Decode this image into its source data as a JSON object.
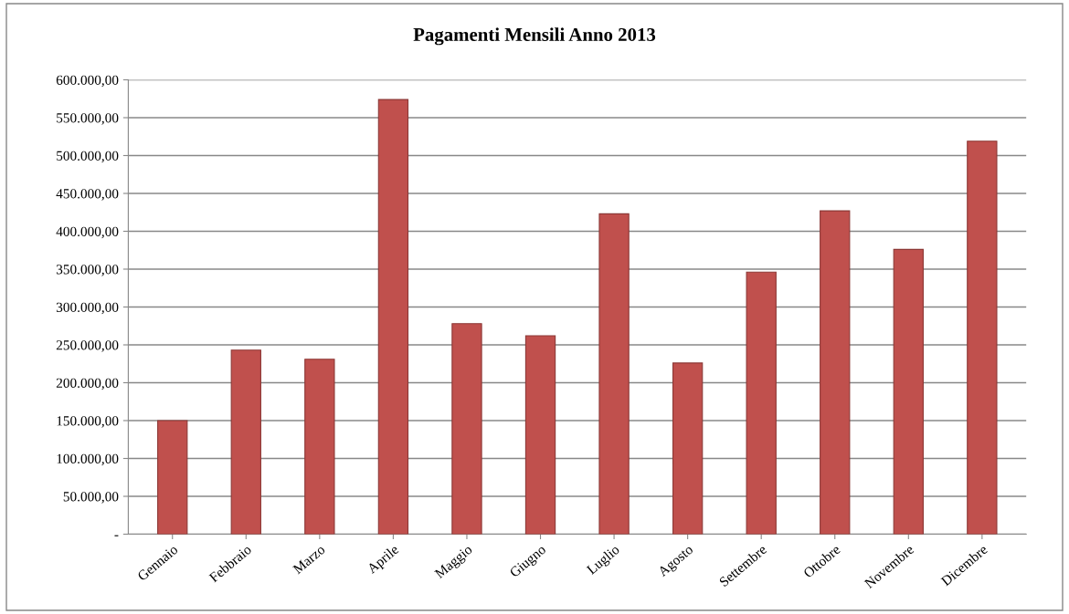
{
  "chart_data": {
    "type": "bar",
    "title": "Pagamenti Mensili Anno 2013",
    "categories": [
      "Gennaio",
      "Febbraio",
      "Marzo",
      "Aprile",
      "Maggio",
      "Giugno",
      "Luglio",
      "Agosto",
      "Settembre",
      "Ottobre",
      "Novembre",
      "Dicembre"
    ],
    "values": [
      150000,
      243000,
      231000,
      574000,
      278000,
      262000,
      423000,
      226000,
      346000,
      427000,
      376000,
      519000
    ],
    "color": "#c0504d",
    "ylim": [
      0,
      600000
    ],
    "yticks": [
      {
        "value": 0,
        "label": "-"
      },
      {
        "value": 50000,
        "label": "50.000,00"
      },
      {
        "value": 100000,
        "label": "100.000,00"
      },
      {
        "value": 150000,
        "label": "150.000,00"
      },
      {
        "value": 200000,
        "label": "200.000,00"
      },
      {
        "value": 250000,
        "label": "250.000,00"
      },
      {
        "value": 300000,
        "label": "300.000,00"
      },
      {
        "value": 350000,
        "label": "350.000,00"
      },
      {
        "value": 400000,
        "label": "400.000,00"
      },
      {
        "value": 450000,
        "label": "450.000,00"
      },
      {
        "value": 500000,
        "label": "500.000,00"
      },
      {
        "value": 550000,
        "label": "550.000,00"
      },
      {
        "value": 600000,
        "label": "600.000,00"
      }
    ],
    "grid": "y",
    "legend": false
  }
}
